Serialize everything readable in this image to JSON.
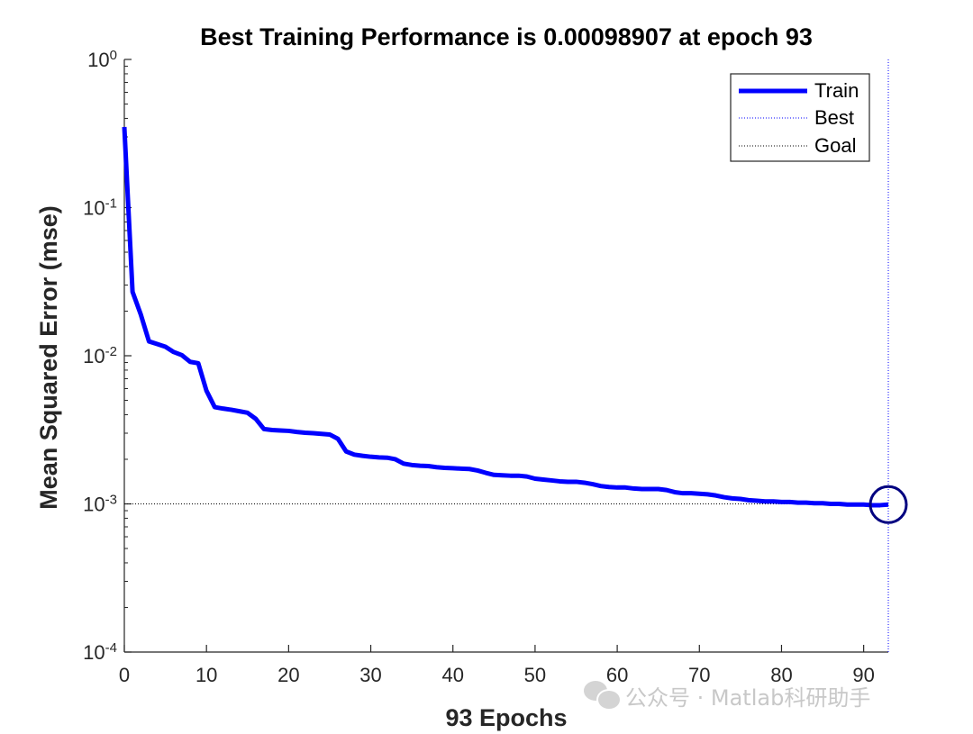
{
  "chart_data": {
    "type": "line",
    "title": "Best Training Performance is 0.00098907 at epoch 93",
    "xlabel": "93 Epochs",
    "ylabel": "Mean Squared Error  (mse)",
    "xlim": [
      0,
      93
    ],
    "ylim": [
      0.0001,
      1
    ],
    "yscale": "log",
    "x_ticks": [
      0,
      10,
      20,
      30,
      40,
      50,
      60,
      70,
      80,
      90
    ],
    "y_ticks": [
      {
        "value": 1,
        "base": "10",
        "exp": "0"
      },
      {
        "value": 0.1,
        "base": "10",
        "exp": "-1"
      },
      {
        "value": 0.01,
        "base": "10",
        "exp": "-2"
      },
      {
        "value": 0.001,
        "base": "10",
        "exp": "-3"
      },
      {
        "value": 0.0001,
        "base": "10",
        "exp": "-4"
      }
    ],
    "grid": false,
    "legend_position": "top-right",
    "series": [
      {
        "name": "Train",
        "color": "#0000ff",
        "style": "solid",
        "x": [
          0,
          1,
          2,
          3,
          4,
          5,
          6,
          7,
          8,
          9,
          10,
          11,
          12,
          13,
          14,
          15,
          16,
          17,
          18,
          19,
          20,
          21,
          22,
          23,
          24,
          25,
          26,
          27,
          28,
          29,
          30,
          31,
          32,
          33,
          34,
          35,
          36,
          37,
          38,
          39,
          40,
          41,
          42,
          43,
          44,
          45,
          46,
          47,
          48,
          49,
          50,
          51,
          52,
          53,
          54,
          55,
          56,
          57,
          58,
          59,
          60,
          61,
          62,
          63,
          64,
          65,
          66,
          67,
          68,
          69,
          70,
          71,
          72,
          73,
          74,
          75,
          76,
          77,
          78,
          79,
          80,
          81,
          82,
          83,
          84,
          85,
          86,
          87,
          88,
          89,
          90,
          91,
          92,
          93
        ],
        "y": [
          0.35,
          0.027,
          0.019,
          0.0125,
          0.012,
          0.0115,
          0.0106,
          0.0101,
          0.0091,
          0.0089,
          0.0058,
          0.0045,
          0.0044,
          0.00432,
          0.00422,
          0.00412,
          0.00375,
          0.0032,
          0.00315,
          0.00313,
          0.00311,
          0.00306,
          0.00302,
          0.003,
          0.00297,
          0.00294,
          0.00275,
          0.00226,
          0.00215,
          0.00211,
          0.00208,
          0.00206,
          0.00205,
          0.002,
          0.00187,
          0.00183,
          0.00181,
          0.0018,
          0.00177,
          0.00175,
          0.00174,
          0.00173,
          0.00172,
          0.00168,
          0.00162,
          0.00157,
          0.00156,
          0.00155,
          0.00155,
          0.00153,
          0.00148,
          0.00146,
          0.00144,
          0.00142,
          0.00141,
          0.00141,
          0.00139,
          0.00136,
          0.00132,
          0.0013,
          0.00129,
          0.00129,
          0.00127,
          0.00126,
          0.00126,
          0.00126,
          0.00124,
          0.0012,
          0.00118,
          0.00118,
          0.00117,
          0.00116,
          0.00114,
          0.00111,
          0.00109,
          0.00108,
          0.00106,
          0.00105,
          0.00104,
          0.00104,
          0.00103,
          0.00103,
          0.00102,
          0.00102,
          0.00101,
          0.00101,
          0.001,
          0.001,
          0.00099,
          0.00099,
          0.00099,
          0.00098,
          0.00098,
          0.000989
        ]
      },
      {
        "name": "Best",
        "color": "#0000ff",
        "style": "dotted",
        "x": [
          93,
          93
        ],
        "y": [
          0.0001,
          1
        ]
      },
      {
        "name": "Goal",
        "color": "#000000",
        "style": "dotted",
        "x": [
          0,
          93
        ],
        "y": [
          0.001,
          0.001
        ]
      }
    ],
    "best_marker": {
      "x": 93,
      "y": 0.00098907,
      "color": "#000080"
    }
  },
  "watermark": {
    "text": "公众号 · Matlab科研助手"
  }
}
